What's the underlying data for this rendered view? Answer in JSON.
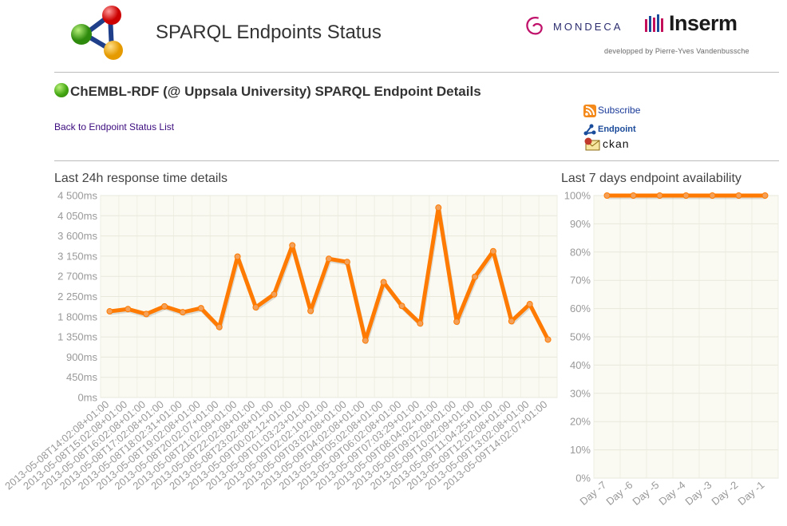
{
  "header": {
    "site_title": "SPARQL Endpoints Status",
    "partner_mondeca": "MONDECA",
    "partner_inserm": "Inserm",
    "credit": "developped by Pierre-Yves Vandenbussche"
  },
  "endpoint": {
    "title": "ChEMBL-RDF (@ Uppsala University) SPARQL Endpoint Details",
    "status_color": "#44a712",
    "back_link": "Back to Endpoint Status List"
  },
  "links": {
    "subscribe": "Subscribe",
    "endpoint": "Endpoint",
    "ckan": "ckan"
  },
  "colors": {
    "line": "#ff7a00",
    "plot_bg": "#fafaf2"
  },
  "chart_data": [
    {
      "type": "line",
      "title": "Last 24h response time details",
      "ylim": [
        0,
        4500
      ],
      "y_ticks": [
        "0ms",
        "450ms",
        "900ms",
        "1 350ms",
        "1 800ms",
        "2 250ms",
        "2 700ms",
        "3 150ms",
        "3 600ms",
        "4 050ms",
        "4 500ms"
      ],
      "categories": [
        "2013-05-08T14:02:08+01:00",
        "2013-05-08T15:02:08+01:00",
        "2013-05-08T16:02:08+01:00",
        "2013-05-08T17:02:08+01:00",
        "2013-05-08T18:02:31+01:00",
        "2013-05-08T19:02:08+01:00",
        "2013-05-08T20:02:07+01:00",
        "2013-05-08T21:02:09+01:00",
        "2013-05-08T22:02:08+01:00",
        "2013-05-08T23:02:08+01:00",
        "2013-05-09T00:02:12+01:00",
        "2013-05-09T01:03:23+01:00",
        "2013-05-09T02:02:10+01:00",
        "2013-05-09T03:02:08+01:00",
        "2013-05-09T04:02:08+01:00",
        "2013-05-09T05:02:08+01:00",
        "2013-05-09T06:02:08+01:00",
        "2013-05-09T07:03:29+01:00",
        "2013-05-09T08:04:02+01:00",
        "2013-05-09T09:02:08+01:00",
        "2013-05-09T10:02:09+01:00",
        "2013-05-09T11:04:25+01:00",
        "2013-05-09T12:02:08+01:00",
        "2013-05-09T13:02:08+01:00",
        "2013-05-09T14:02:07+01:00"
      ],
      "values": [
        1920,
        1970,
        1860,
        2030,
        1900,
        1990,
        1570,
        3140,
        2010,
        2300,
        3390,
        1930,
        3090,
        3020,
        1270,
        2570,
        2040,
        1650,
        4230,
        1690,
        2690,
        3260,
        1700,
        2080,
        1290
      ]
    },
    {
      "type": "line",
      "title": "Last 7 days endpoint availability",
      "ylim": [
        0,
        100
      ],
      "y_ticks": [
        "0%",
        "10%",
        "20%",
        "30%",
        "40%",
        "50%",
        "60%",
        "70%",
        "80%",
        "90%",
        "100%"
      ],
      "categories": [
        "Day -7",
        "Day -6",
        "Day -5",
        "Day -4",
        "Day -3",
        "Day -2",
        "Day -1"
      ],
      "values": [
        100,
        100,
        100,
        100,
        100,
        100,
        100
      ]
    }
  ]
}
